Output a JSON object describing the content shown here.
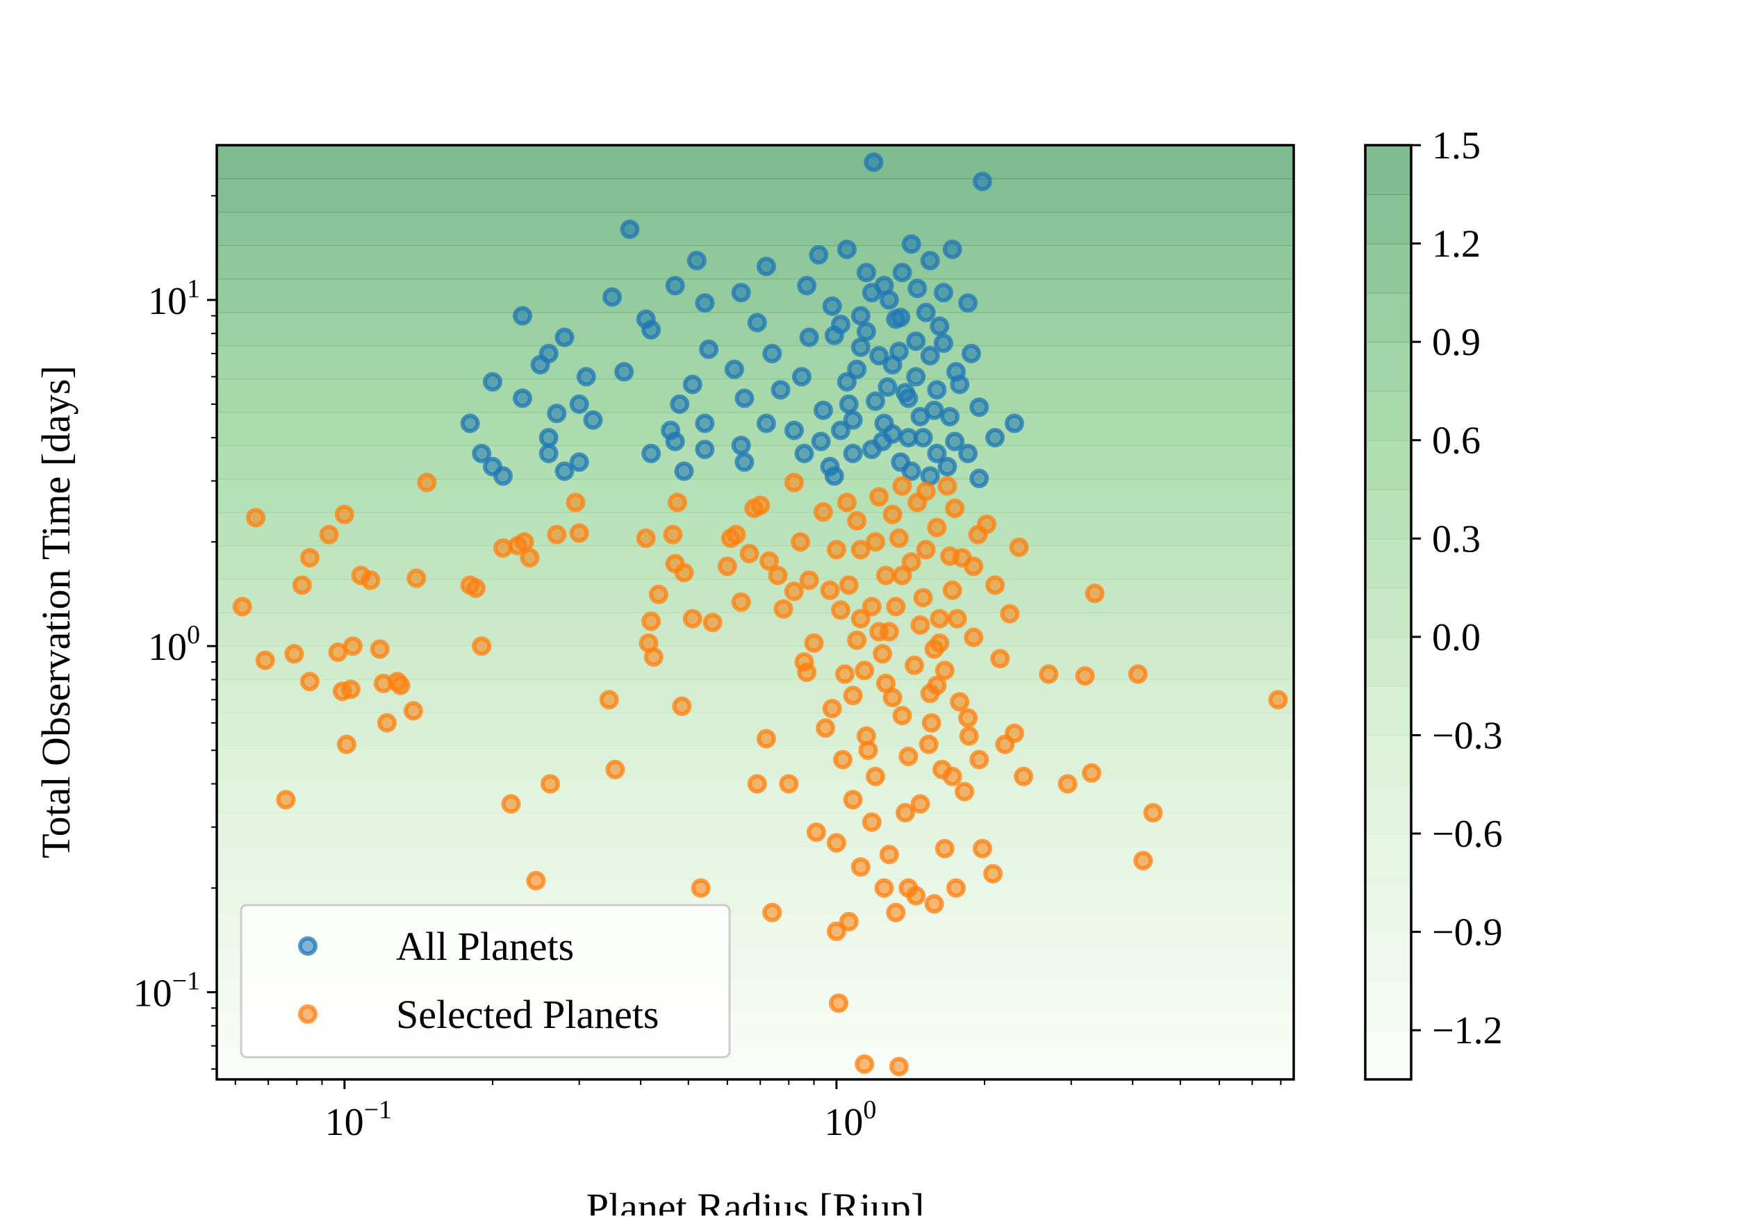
{
  "chart_data": {
    "type": "scatter",
    "title": "",
    "xlabel": "Planet Radius [Rjup]",
    "ylabel": "Total Observation Time [days]",
    "x_scale": "log",
    "y_scale": "log",
    "xlim": [
      0.055,
      8.5
    ],
    "ylim": [
      0.056,
      28
    ],
    "x_ticks": [
      {
        "value": 0.1,
        "base": "10",
        "exp": "−1"
      },
      {
        "value": 1,
        "base": "10",
        "exp": "0"
      }
    ],
    "y_ticks": [
      {
        "value": 0.1,
        "base": "10",
        "exp": "−1"
      },
      {
        "value": 1,
        "base": "10",
        "exp": "0"
      },
      {
        "value": 10,
        "base": "10",
        "exp": "1"
      }
    ],
    "grid": false,
    "legend_position": "lower-left",
    "background": {
      "type": "horizontal-gradient-colormap",
      "colormap": "Greens",
      "range": [
        -1.35,
        1.5
      ]
    },
    "colorbar": {
      "range": [
        -1.35,
        1.5
      ],
      "ticks": [
        "1.5",
        "1.2",
        "0.9",
        "0.6",
        "0.3",
        "0.0",
        "−0.3",
        "−0.6",
        "−0.9",
        "−1.2"
      ],
      "tick_values": [
        1.5,
        1.2,
        0.9,
        0.6,
        0.3,
        0.0,
        -0.3,
        -0.6,
        -0.9,
        -1.2
      ]
    },
    "series": [
      {
        "name": "All Planets",
        "color": "#1f77b4",
        "points": [
          [
            1.19,
            25.0
          ],
          [
            1.98,
            22.0
          ],
          [
            0.38,
            16.0
          ],
          [
            1.05,
            14.0
          ],
          [
            1.42,
            14.5
          ],
          [
            1.72,
            14.0
          ],
          [
            0.52,
            13.0
          ],
          [
            0.72,
            12.5
          ],
          [
            0.92,
            13.5
          ],
          [
            1.15,
            12.0
          ],
          [
            1.55,
            13.0
          ],
          [
            0.47,
            11.0
          ],
          [
            0.64,
            10.5
          ],
          [
            0.87,
            11.0
          ],
          [
            1.25,
            11.0
          ],
          [
            1.65,
            10.5
          ],
          [
            0.35,
            10.2
          ],
          [
            0.54,
            9.8
          ],
          [
            0.98,
            9.6
          ],
          [
            1.85,
            9.8
          ],
          [
            0.23,
            9.0
          ],
          [
            0.41,
            8.8
          ],
          [
            0.69,
            8.6
          ],
          [
            1.02,
            8.5
          ],
          [
            1.35,
            8.9
          ],
          [
            0.28,
            7.8
          ],
          [
            0.42,
            8.2
          ],
          [
            0.88,
            7.8
          ],
          [
            1.45,
            7.6
          ],
          [
            0.26,
            7.0
          ],
          [
            0.55,
            7.2
          ],
          [
            0.74,
            7.0
          ],
          [
            1.12,
            7.3
          ],
          [
            1.88,
            7.0
          ],
          [
            0.25,
            6.5
          ],
          [
            0.37,
            6.2
          ],
          [
            0.62,
            6.3
          ],
          [
            0.85,
            6.0
          ],
          [
            1.3,
            6.5
          ],
          [
            1.75,
            6.2
          ],
          [
            0.2,
            5.8
          ],
          [
            0.31,
            6.0
          ],
          [
            0.51,
            5.7
          ],
          [
            0.77,
            5.5
          ],
          [
            1.05,
            5.8
          ],
          [
            1.6,
            5.5
          ],
          [
            0.23,
            5.2
          ],
          [
            0.3,
            5.0
          ],
          [
            0.48,
            5.0
          ],
          [
            0.65,
            5.2
          ],
          [
            0.94,
            4.8
          ],
          [
            1.4,
            5.2
          ],
          [
            1.95,
            4.9
          ],
          [
            0.27,
            4.7
          ],
          [
            0.54,
            4.4
          ],
          [
            0.72,
            4.4
          ],
          [
            1.08,
            4.5
          ],
          [
            1.7,
            4.6
          ],
          [
            0.18,
            4.4
          ],
          [
            0.32,
            4.5
          ],
          [
            0.46,
            4.2
          ],
          [
            0.82,
            4.2
          ],
          [
            1.25,
            4.4
          ],
          [
            2.3,
            4.4
          ],
          [
            0.26,
            4.0
          ],
          [
            0.47,
            3.9
          ],
          [
            0.64,
            3.8
          ],
          [
            0.93,
            3.9
          ],
          [
            1.5,
            4.0
          ],
          [
            2.1,
            4.0
          ],
          [
            0.19,
            3.6
          ],
          [
            0.26,
            3.6
          ],
          [
            0.42,
            3.6
          ],
          [
            0.54,
            3.7
          ],
          [
            0.86,
            3.6
          ],
          [
            1.18,
            3.7
          ],
          [
            1.85,
            3.6
          ],
          [
            0.2,
            3.3
          ],
          [
            0.3,
            3.4
          ],
          [
            0.49,
            3.2
          ],
          [
            0.65,
            3.4
          ],
          [
            0.97,
            3.3
          ],
          [
            1.35,
            3.4
          ],
          [
            1.68,
            3.3
          ],
          [
            0.21,
            3.1
          ],
          [
            0.28,
            3.2
          ],
          [
            0.99,
            3.1
          ],
          [
            1.55,
            3.1
          ],
          [
            1.95,
            3.05
          ],
          [
            0.99,
            7.9
          ],
          [
            1.12,
            9.0
          ],
          [
            1.2,
            5.1
          ],
          [
            1.3,
            4.1
          ],
          [
            1.45,
            6.0
          ],
          [
            1.6,
            3.6
          ],
          [
            1.22,
            6.9
          ],
          [
            1.38,
            5.4
          ],
          [
            1.48,
            4.6
          ],
          [
            1.08,
            3.6
          ],
          [
            1.15,
            8.1
          ],
          [
            1.28,
            10.0
          ],
          [
            1.52,
            9.2
          ],
          [
            1.42,
            3.2
          ],
          [
            1.65,
            7.5
          ],
          [
            1.06,
            5.0
          ],
          [
            1.34,
            7.1
          ],
          [
            1.58,
            4.8
          ],
          [
            1.24,
            3.9
          ],
          [
            1.46,
            10.8
          ],
          [
            1.78,
            5.7
          ],
          [
            1.1,
            6.3
          ],
          [
            1.36,
            12.0
          ],
          [
            1.62,
            8.4
          ],
          [
            1.27,
            5.6
          ],
          [
            1.02,
            4.2
          ],
          [
            1.74,
            3.9
          ],
          [
            1.18,
            10.5
          ],
          [
            1.55,
            6.9
          ],
          [
            1.4,
            4.0
          ],
          [
            1.32,
            8.8
          ]
        ]
      },
      {
        "name": "Selected Planets",
        "color": "#ff7f0e",
        "points": [
          [
            0.062,
            1.3
          ],
          [
            0.066,
            2.35
          ],
          [
            0.069,
            0.91
          ],
          [
            0.076,
            0.36
          ],
          [
            0.079,
            0.95
          ],
          [
            0.082,
            1.5
          ],
          [
            0.085,
            1.8
          ],
          [
            0.085,
            0.79
          ],
          [
            0.093,
            2.1
          ],
          [
            0.097,
            0.96
          ],
          [
            0.099,
            0.74
          ],
          [
            0.1,
            2.4
          ],
          [
            0.101,
            0.52
          ],
          [
            0.103,
            0.75
          ],
          [
            0.104,
            1.0
          ],
          [
            0.108,
            1.6
          ],
          [
            0.113,
            1.55
          ],
          [
            0.118,
            0.98
          ],
          [
            0.12,
            0.78
          ],
          [
            0.122,
            0.6
          ],
          [
            0.128,
            0.79
          ],
          [
            0.13,
            0.77
          ],
          [
            0.138,
            0.65
          ],
          [
            0.14,
            1.57
          ],
          [
            0.147,
            2.97
          ],
          [
            0.18,
            1.5
          ],
          [
            0.185,
            1.47
          ],
          [
            0.19,
            1.0
          ],
          [
            0.21,
            1.92
          ],
          [
            0.218,
            0.35
          ],
          [
            0.225,
            1.95
          ],
          [
            0.232,
            2.0
          ],
          [
            0.238,
            1.8
          ],
          [
            0.245,
            0.21
          ],
          [
            0.262,
            0.4
          ],
          [
            0.27,
            2.1
          ],
          [
            0.295,
            2.6
          ],
          [
            0.3,
            2.12
          ],
          [
            0.345,
            0.7
          ],
          [
            0.355,
            0.44
          ],
          [
            0.41,
            2.05
          ],
          [
            0.415,
            1.02
          ],
          [
            0.42,
            1.18
          ],
          [
            0.425,
            0.93
          ],
          [
            0.435,
            1.41
          ],
          [
            0.465,
            2.1
          ],
          [
            0.47,
            1.73
          ],
          [
            0.475,
            2.6
          ],
          [
            0.485,
            0.67
          ],
          [
            0.49,
            1.63
          ],
          [
            0.51,
            1.2
          ],
          [
            0.53,
            0.2
          ],
          [
            0.56,
            1.17
          ],
          [
            0.6,
            1.7
          ],
          [
            0.61,
            2.05
          ],
          [
            0.625,
            2.1
          ],
          [
            0.64,
            1.34
          ],
          [
            0.665,
            1.85
          ],
          [
            0.68,
            2.5
          ],
          [
            0.69,
            0.4
          ],
          [
            0.7,
            2.55
          ],
          [
            0.72,
            0.54
          ],
          [
            0.73,
            1.76
          ],
          [
            0.74,
            0.17
          ],
          [
            0.76,
            1.6
          ],
          [
            0.78,
            1.28
          ],
          [
            0.8,
            0.4
          ],
          [
            0.82,
            1.44
          ],
          [
            0.82,
            2.97
          ],
          [
            0.845,
            2.0
          ],
          [
            0.86,
            0.9
          ],
          [
            0.87,
            0.84
          ],
          [
            0.88,
            1.55
          ],
          [
            0.9,
            1.02
          ],
          [
            0.91,
            0.29
          ],
          [
            0.94,
            2.44
          ],
          [
            0.95,
            0.58
          ],
          [
            0.97,
            1.45
          ],
          [
            0.98,
            0.66
          ],
          [
            1.0,
            0.27
          ],
          [
            1.0,
            0.15
          ],
          [
            1.01,
            0.093
          ],
          [
            1.02,
            1.27
          ],
          [
            1.03,
            0.47
          ],
          [
            1.04,
            0.83
          ],
          [
            1.06,
            0.16
          ],
          [
            1.08,
            0.36
          ],
          [
            1.1,
            1.04
          ],
          [
            1.12,
            0.23
          ],
          [
            1.14,
            0.062
          ],
          [
            1.15,
            0.55
          ],
          [
            1.18,
            0.31
          ],
          [
            1.2,
            2.0
          ],
          [
            1.22,
            1.1
          ],
          [
            1.25,
            0.2
          ],
          [
            1.28,
            0.25
          ],
          [
            1.3,
            0.71
          ],
          [
            1.32,
            0.17
          ],
          [
            1.34,
            0.061
          ],
          [
            1.36,
            1.6
          ],
          [
            1.4,
            0.2
          ],
          [
            1.45,
            0.19
          ],
          [
            1.48,
            0.35
          ],
          [
            1.52,
            2.8
          ],
          [
            1.55,
            0.73
          ],
          [
            1.58,
            0.18
          ],
          [
            1.62,
            1.2
          ],
          [
            1.66,
            0.26
          ],
          [
            1.72,
            0.42
          ],
          [
            1.75,
            0.2
          ],
          [
            1.8,
            1.8
          ],
          [
            1.85,
            0.62
          ],
          [
            1.9,
            1.06
          ],
          [
            1.95,
            0.47
          ],
          [
            1.98,
            0.26
          ],
          [
            2.02,
            2.25
          ],
          [
            2.08,
            0.22
          ],
          [
            2.1,
            1.5
          ],
          [
            2.15,
            0.92
          ],
          [
            2.2,
            0.52
          ],
          [
            2.25,
            1.24
          ],
          [
            2.3,
            0.56
          ],
          [
            2.35,
            1.93
          ],
          [
            2.4,
            0.42
          ],
          [
            2.7,
            0.83
          ],
          [
            2.95,
            0.4
          ],
          [
            3.2,
            0.82
          ],
          [
            3.3,
            0.43
          ],
          [
            3.35,
            1.42
          ],
          [
            4.1,
            0.83
          ],
          [
            4.2,
            0.24
          ],
          [
            4.4,
            0.33
          ],
          [
            7.9,
            0.7
          ],
          [
            1.05,
            2.6
          ],
          [
            1.12,
            1.9
          ],
          [
            1.18,
            1.3
          ],
          [
            1.24,
            0.95
          ],
          [
            1.3,
            2.4
          ],
          [
            1.36,
            0.63
          ],
          [
            1.42,
            1.75
          ],
          [
            1.48,
            1.15
          ],
          [
            1.54,
            0.52
          ],
          [
            1.6,
            2.2
          ],
          [
            1.66,
            0.85
          ],
          [
            1.72,
            1.45
          ],
          [
            1.08,
            0.72
          ],
          [
            1.16,
            0.5
          ],
          [
            1.26,
            1.6
          ],
          [
            1.34,
            2.05
          ],
          [
            1.44,
            0.88
          ],
          [
            1.5,
            1.38
          ],
          [
            1.58,
            0.98
          ],
          [
            1.64,
            0.44
          ],
          [
            1.7,
            1.82
          ],
          [
            1.78,
            0.69
          ],
          [
            1.1,
            2.3
          ],
          [
            1.2,
            0.42
          ],
          [
            1.28,
            1.1
          ],
          [
            1.38,
            0.33
          ],
          [
            1.46,
            2.6
          ],
          [
            1.56,
            0.6
          ],
          [
            1.62,
            1.02
          ],
          [
            1.74,
            2.5
          ],
          [
            1.82,
            0.38
          ],
          [
            1.9,
            1.7
          ],
          [
            1.06,
            1.5
          ],
          [
            1.14,
            0.85
          ],
          [
            1.22,
            2.7
          ],
          [
            1.32,
            1.3
          ],
          [
            1.4,
            0.48
          ],
          [
            1.52,
            1.9
          ],
          [
            1.6,
            0.77
          ],
          [
            1.68,
            2.9
          ],
          [
            1.76,
            1.2
          ],
          [
            1.86,
            0.55
          ],
          [
            1.94,
            2.1
          ],
          [
            1.0,
            1.9
          ],
          [
            1.12,
            1.2
          ],
          [
            1.26,
            0.78
          ],
          [
            1.36,
            2.9
          ]
        ]
      }
    ]
  }
}
